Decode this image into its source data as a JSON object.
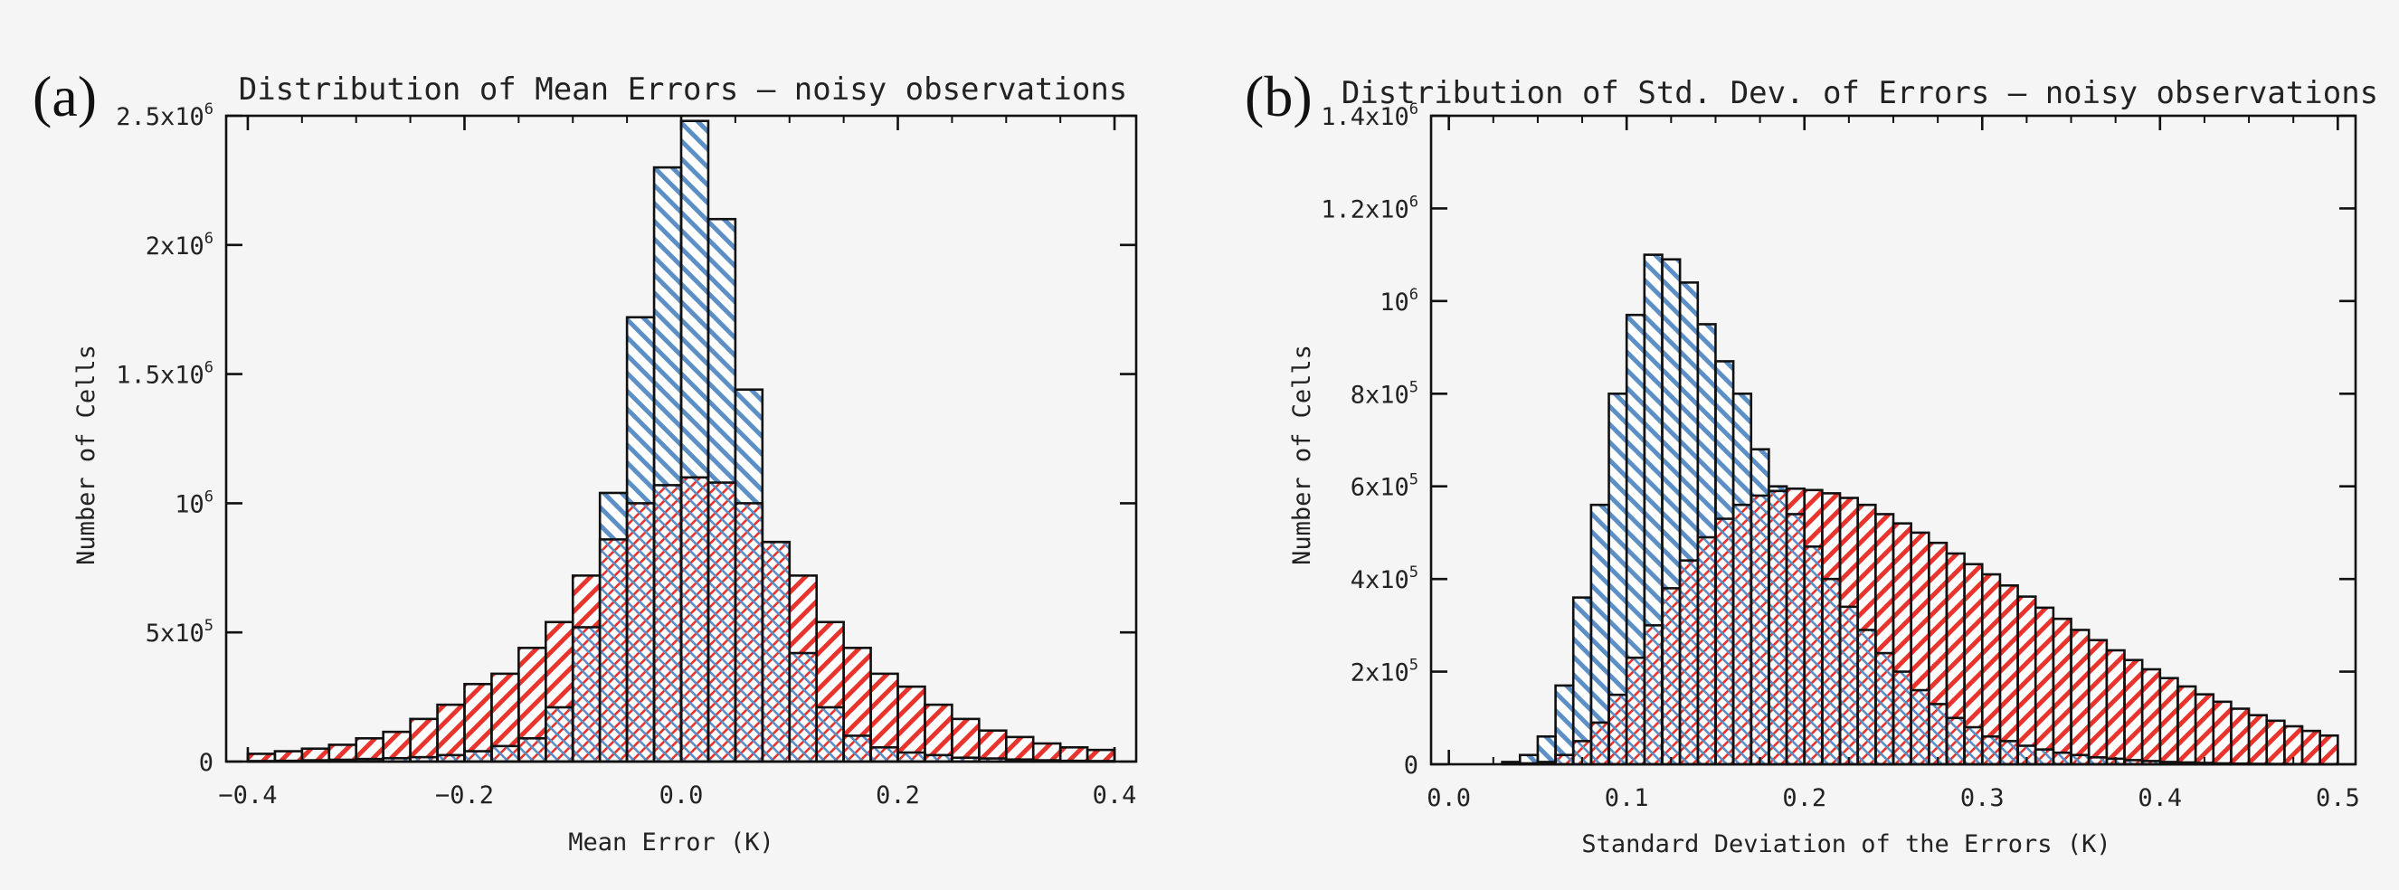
{
  "chart_data": [
    {
      "panel": "(a)",
      "type": "bar",
      "subtype": "overlaid histogram",
      "title": "Distribution of Mean Errors – noisy observations",
      "xlabel": "Mean Error (K)",
      "ylabel": "Number of Cells",
      "xlim": [
        -0.42,
        0.42
      ],
      "ylim": [
        0,
        2500000
      ],
      "xticks": [
        -0.4,
        -0.2,
        0.0,
        0.2,
        0.4
      ],
      "xtick_labels": [
        "−0.4",
        "−0.2",
        "0.0",
        "0.2",
        "0.4"
      ],
      "yticks": [
        0,
        500000,
        1000000,
        1500000,
        2000000,
        2500000
      ],
      "ytick_labels": [
        {
          "mant": "0",
          "exp": ""
        },
        {
          "mant": "5x10",
          "exp": "5"
        },
        {
          "mant": "10",
          "exp": "6"
        },
        {
          "mant": "1.5x10",
          "exp": "6"
        },
        {
          "mant": "2x10",
          "exp": "6"
        },
        {
          "mant": "2.5x10",
          "exp": "6"
        }
      ],
      "bin_width": 0.025,
      "x_start": -0.4,
      "series": [
        {
          "name": "red",
          "color": "#e8342c",
          "hatch": "diag-forward",
          "values": [
            30000,
            40000,
            50000,
            65000,
            90000,
            115000,
            165000,
            220000,
            300000,
            340000,
            440000,
            540000,
            720000,
            860000,
            1000000,
            1070000,
            1100000,
            1080000,
            1000000,
            850000,
            720000,
            540000,
            440000,
            340000,
            290000,
            220000,
            165000,
            120000,
            95000,
            70000,
            55000,
            45000
          ]
        },
        {
          "name": "blue",
          "color": "#5b8fc6",
          "hatch": "diag-back",
          "values": [
            2000,
            3000,
            5000,
            7000,
            10000,
            13000,
            17000,
            25000,
            40000,
            60000,
            90000,
            210000,
            520000,
            1040000,
            1720000,
            2300000,
            2480000,
            2100000,
            1440000,
            850000,
            420000,
            210000,
            100000,
            55000,
            35000,
            25000,
            15000,
            12000,
            8000,
            5000,
            3000,
            2000
          ]
        }
      ]
    },
    {
      "panel": "(b)",
      "type": "bar",
      "subtype": "overlaid histogram",
      "title": "Distribution of Std. Dev. of Errors – noisy observations",
      "xlabel": "Standard Deviation of the Errors (K)",
      "ylabel": "Number of Cells",
      "xlim": [
        -0.01,
        0.51
      ],
      "ylim": [
        0,
        1400000
      ],
      "xticks": [
        0.0,
        0.1,
        0.2,
        0.3,
        0.4,
        0.5
      ],
      "xtick_labels": [
        "0.0",
        "0.1",
        "0.2",
        "0.3",
        "0.4",
        "0.5"
      ],
      "yticks": [
        0,
        200000,
        400000,
        600000,
        800000,
        1000000,
        1200000,
        1400000
      ],
      "ytick_labels": [
        {
          "mant": "0",
          "exp": ""
        },
        {
          "mant": "2x10",
          "exp": "5"
        },
        {
          "mant": "4x10",
          "exp": "5"
        },
        {
          "mant": "6x10",
          "exp": "5"
        },
        {
          "mant": "8x10",
          "exp": "5"
        },
        {
          "mant": "10",
          "exp": "6"
        },
        {
          "mant": "1.2x10",
          "exp": "6"
        },
        {
          "mant": "1.4x10",
          "exp": "6"
        }
      ],
      "bin_width": 0.01,
      "x_start": 0.0,
      "series": [
        {
          "name": "red",
          "color": "#e8342c",
          "hatch": "diag-forward",
          "values": [
            0,
            0,
            0,
            0,
            2000,
            5000,
            20000,
            50000,
            90000,
            150000,
            230000,
            300000,
            380000,
            440000,
            490000,
            530000,
            560000,
            580000,
            590000,
            595000,
            592000,
            585000,
            575000,
            560000,
            540000,
            520000,
            500000,
            478000,
            455000,
            432000,
            410000,
            386000,
            362000,
            338000,
            314000,
            290000,
            268000,
            246000,
            225000,
            205000,
            186000,
            168000,
            151000,
            135000,
            120000,
            106000,
            94000,
            82000,
            72000,
            62000
          ]
        },
        {
          "name": "blue",
          "color": "#5b8fc6",
          "hatch": "diag-back",
          "values": [
            0,
            0,
            0,
            5000,
            20000,
            60000,
            170000,
            360000,
            560000,
            800000,
            970000,
            1100000,
            1090000,
            1040000,
            950000,
            870000,
            800000,
            680000,
            600000,
            540000,
            470000,
            400000,
            340000,
            290000,
            240000,
            200000,
            160000,
            130000,
            100000,
            80000,
            60000,
            50000,
            40000,
            32000,
            25000,
            20000,
            15000,
            12000,
            9000,
            7000,
            5000,
            4000,
            3000,
            2000,
            1500,
            1000,
            800,
            600,
            400,
            200
          ]
        }
      ]
    }
  ]
}
